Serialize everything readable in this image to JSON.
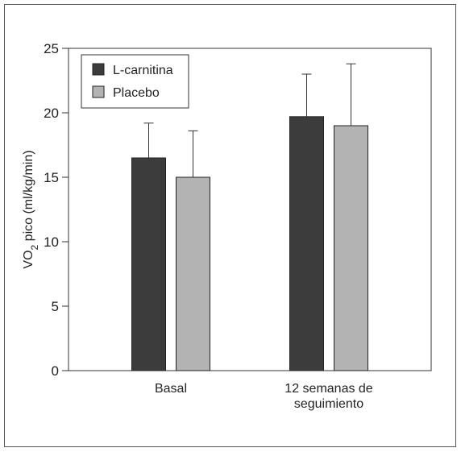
{
  "chart_data": {
    "type": "bar",
    "categories": [
      [
        "Basal"
      ],
      [
        "12 semanas de",
        "seguimiento"
      ]
    ],
    "series": [
      {
        "name": "L-carnitina",
        "values": [
          16.5,
          19.7
        ],
        "error_upper": [
          19.2,
          23.0
        ],
        "color": "#3c3c3c"
      },
      {
        "name": "Placebo",
        "values": [
          15.0,
          19.0
        ],
        "error_upper": [
          18.6,
          23.8
        ],
        "color": "#b3b3b3"
      }
    ],
    "ylabel": {
      "main": "VO",
      "sub": "2",
      "rest": " pico (ml/kg/min)"
    },
    "ylim": [
      0,
      25
    ],
    "yticks": [
      0,
      5,
      10,
      15,
      20,
      25
    ],
    "legend_position": "top-left",
    "grid": false
  }
}
